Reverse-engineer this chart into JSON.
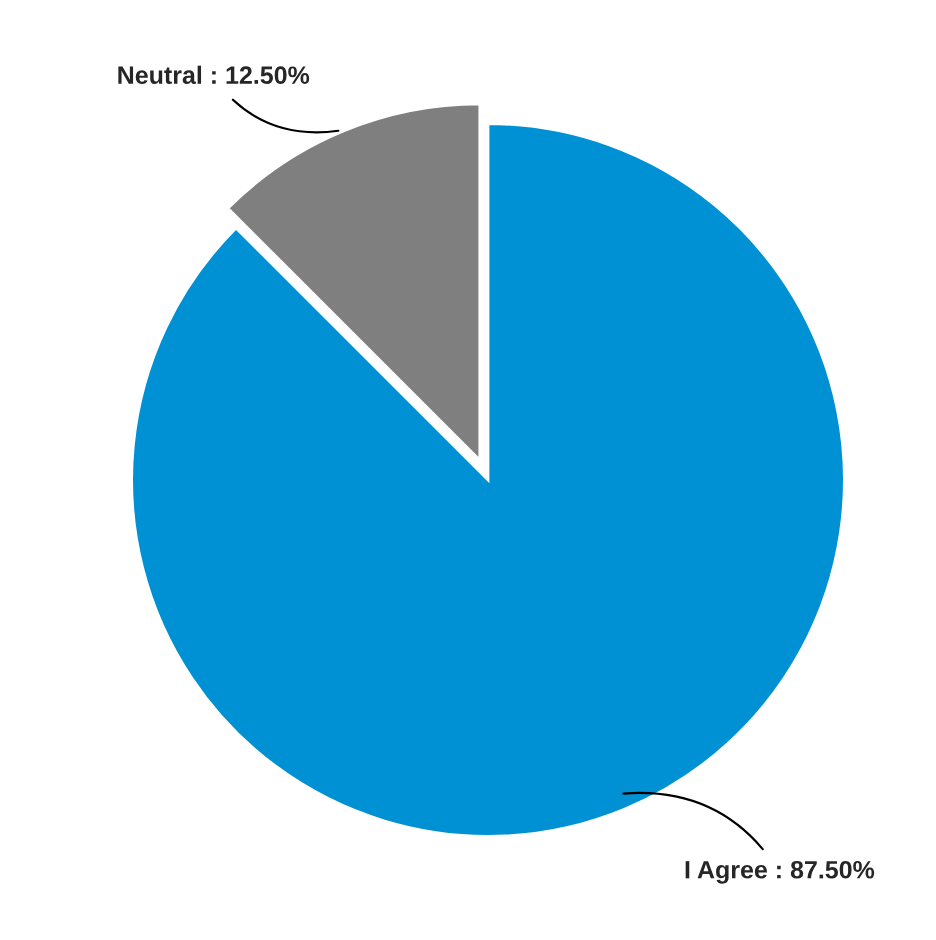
{
  "chart_data": {
    "type": "pie",
    "categories": [
      "I Agree",
      "Neutral"
    ],
    "values": [
      87.5,
      12.5
    ],
    "colors": [
      "#0091d5",
      "#7f7f7f"
    ],
    "value_labels": [
      "87.50%",
      "12.50%"
    ],
    "legend": false
  }
}
